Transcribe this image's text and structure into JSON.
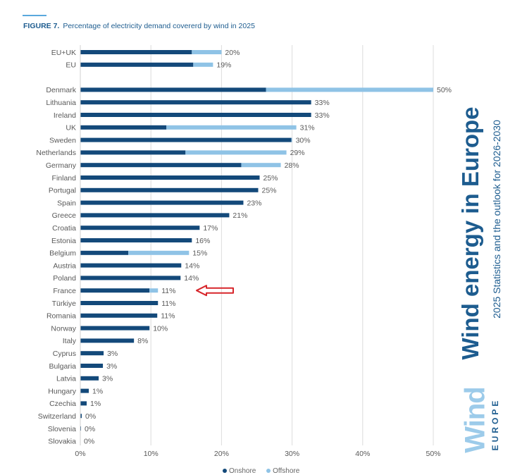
{
  "figure": {
    "number": "FIGURE 7.",
    "title": "Percentage of electricity demand covererd by wind in 2025"
  },
  "branding": {
    "title": "Wind energy in Europe",
    "subtitle": "2025 Statistics and the outlook for 2026-2030",
    "logo_word": "Wind",
    "logo_sub": "EUROPE"
  },
  "legend": {
    "items": [
      {
        "label": "Onshore",
        "color": "#13497a"
      },
      {
        "label": "Offshore",
        "color": "#8fc3e6"
      }
    ]
  },
  "annotation": {
    "type": "red-outline-arrow",
    "points_to": "France",
    "color": "#d7262b"
  },
  "chart_data": {
    "type": "bar",
    "orientation": "horizontal",
    "stacked": true,
    "x_axis": {
      "ticks": [
        "0%",
        "10%",
        "20%",
        "30%",
        "40%",
        "50%"
      ],
      "range": [
        0,
        50
      ]
    },
    "grid": true,
    "series": [
      {
        "name": "Onshore",
        "color": "#13497a"
      },
      {
        "name": "Offshore",
        "color": "#8fc3e6"
      }
    ],
    "rows": [
      {
        "label": "EU+UK",
        "onshore": 15.8,
        "offshore": 4.2,
        "total_label": "20%"
      },
      {
        "label": "EU",
        "onshore": 16.0,
        "offshore": 2.8,
        "total_label": "19%"
      },
      {
        "label": "",
        "spacer": true
      },
      {
        "label": "Denmark",
        "onshore": 26.3,
        "offshore": 23.7,
        "total_label": "50%"
      },
      {
        "label": "Lithuania",
        "onshore": 32.7,
        "offshore": 0,
        "total_label": "33%"
      },
      {
        "label": "Ireland",
        "onshore": 32.7,
        "offshore": 0,
        "total_label": "33%"
      },
      {
        "label": "UK",
        "onshore": 12.2,
        "offshore": 18.4,
        "total_label": "31%"
      },
      {
        "label": "Sweden",
        "onshore": 29.9,
        "offshore": 0.1,
        "total_label": "30%"
      },
      {
        "label": "Netherlands",
        "onshore": 14.9,
        "offshore": 14.3,
        "total_label": "29%"
      },
      {
        "label": "Germany",
        "onshore": 22.8,
        "offshore": 5.6,
        "total_label": "28%"
      },
      {
        "label": "Finland",
        "onshore": 25.4,
        "offshore": 0,
        "total_label": "25%"
      },
      {
        "label": "Portugal",
        "onshore": 25.2,
        "offshore": 0,
        "total_label": "25%"
      },
      {
        "label": "Spain",
        "onshore": 23.1,
        "offshore": 0,
        "total_label": "23%"
      },
      {
        "label": "Greece",
        "onshore": 21.1,
        "offshore": 0,
        "total_label": "21%"
      },
      {
        "label": "Croatia",
        "onshore": 16.9,
        "offshore": 0,
        "total_label": "17%"
      },
      {
        "label": "Estonia",
        "onshore": 15.8,
        "offshore": 0,
        "total_label": "16%"
      },
      {
        "label": "Belgium",
        "onshore": 6.8,
        "offshore": 8.6,
        "total_label": "15%"
      },
      {
        "label": "Austria",
        "onshore": 14.3,
        "offshore": 0,
        "total_label": "14%"
      },
      {
        "label": "Poland",
        "onshore": 14.2,
        "offshore": 0,
        "total_label": "14%"
      },
      {
        "label": "France",
        "onshore": 9.8,
        "offshore": 1.2,
        "total_label": "11%"
      },
      {
        "label": "Türkiye",
        "onshore": 11.0,
        "offshore": 0,
        "total_label": "11%"
      },
      {
        "label": "Romania",
        "onshore": 10.9,
        "offshore": 0,
        "total_label": "11%"
      },
      {
        "label": "Norway",
        "onshore": 9.8,
        "offshore": 0,
        "total_label": "10%"
      },
      {
        "label": "Italy",
        "onshore": 7.6,
        "offshore": 0,
        "total_label": "8%"
      },
      {
        "label": "Cyprus",
        "onshore": 3.3,
        "offshore": 0,
        "total_label": "3%"
      },
      {
        "label": "Bulgaria",
        "onshore": 3.2,
        "offshore": 0,
        "total_label": "3%"
      },
      {
        "label": "Latvia",
        "onshore": 2.6,
        "offshore": 0,
        "total_label": "3%"
      },
      {
        "label": "Hungary",
        "onshore": 1.2,
        "offshore": 0,
        "total_label": "1%"
      },
      {
        "label": "Czechia",
        "onshore": 0.9,
        "offshore": 0,
        "total_label": "1%"
      },
      {
        "label": "Switzerland",
        "onshore": 0.2,
        "offshore": 0,
        "total_label": "0%"
      },
      {
        "label": "Slovenia",
        "onshore": 0.1,
        "offshore": 0,
        "total_label": "0%"
      },
      {
        "label": "Slovakia",
        "onshore": 0.0,
        "offshore": 0,
        "total_label": "0%"
      }
    ]
  }
}
